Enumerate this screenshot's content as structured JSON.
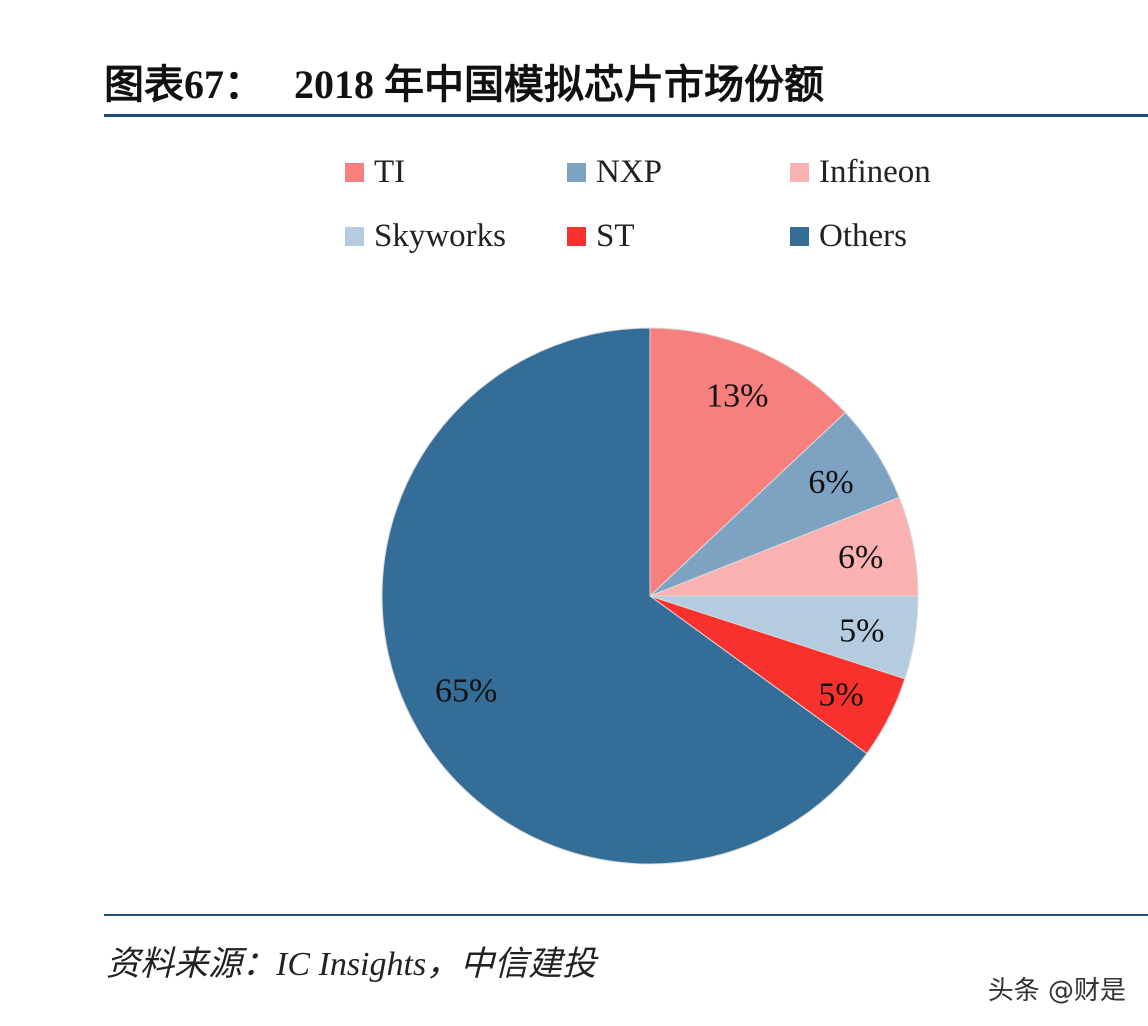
{
  "title": "图表67：   2018 年中国模拟芯片市场份额",
  "source": "资料来源：IC Insights，中信建投",
  "watermark": "头条 @财是",
  "chart_data": {
    "type": "pie",
    "title": "2018 年中国模拟芯片市场份额",
    "start": "top",
    "direction": "clockwise",
    "legend_position": "top",
    "slices": [
      {
        "name": "TI",
        "value": 13,
        "label": "13%",
        "color": "#f7807e"
      },
      {
        "name": "NXP",
        "value": 6,
        "label": "6%",
        "color": "#7ea3c2"
      },
      {
        "name": "Infineon",
        "value": 6,
        "label": "6%",
        "color": "#f9b2b1"
      },
      {
        "name": "Skyworks",
        "value": 5,
        "label": "5%",
        "color": "#b5cbdf"
      },
      {
        "name": "ST",
        "value": 5,
        "label": "5%",
        "color": "#f8312e"
      },
      {
        "name": "Others",
        "value": 65,
        "label": "65%",
        "color": "#336d98"
      }
    ]
  }
}
